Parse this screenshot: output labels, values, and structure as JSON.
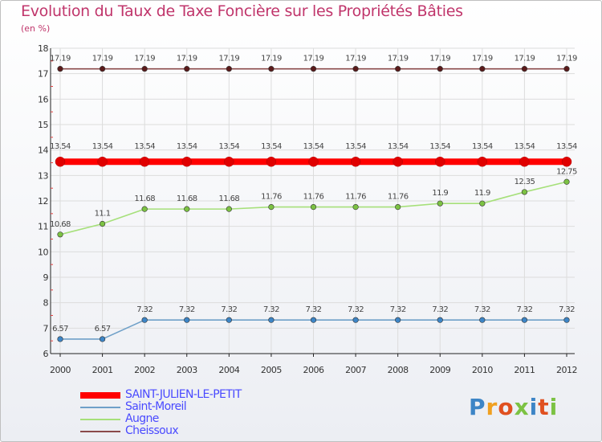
{
  "chart_data": {
    "type": "line",
    "title": "Evolution du Taux de Taxe Foncière sur les Propriétés Bâties",
    "ylabel": "(en %)",
    "xlabel": "",
    "ylim": [
      6,
      18
    ],
    "yticks": [
      6,
      7,
      8,
      9,
      10,
      11,
      12,
      13,
      14,
      15,
      16,
      17,
      18
    ],
    "x": [
      "2000",
      "2001",
      "2002",
      "2003",
      "2004",
      "2005",
      "2006",
      "2007",
      "2008",
      "2009",
      "2010",
      "2011",
      "2012"
    ],
    "series": [
      {
        "name": "SAINT-JULIEN-LE-PETIT",
        "color": "#ff0000",
        "values": [
          13.54,
          13.54,
          13.54,
          13.54,
          13.54,
          13.54,
          13.54,
          13.54,
          13.54,
          13.54,
          13.54,
          13.54,
          13.54
        ],
        "labels": [
          "13.54",
          "13.54",
          "13.54",
          "13.54",
          "13.54",
          "13.54",
          "13.54",
          "13.54",
          "13.54",
          "13.54",
          "13.54",
          "13.54",
          "13.54"
        ]
      },
      {
        "name": "Saint-Moreil",
        "color": "#6fa0c8",
        "values": [
          6.57,
          6.57,
          7.32,
          7.32,
          7.32,
          7.32,
          7.32,
          7.32,
          7.32,
          7.32,
          7.32,
          7.32,
          7.32
        ],
        "labels": [
          "6.57",
          "6.57",
          "7.32",
          "7.32",
          "7.32",
          "7.32",
          "7.32",
          "7.32",
          "7.32",
          "7.32",
          "7.32",
          "7.32",
          "7.32"
        ]
      },
      {
        "name": "Augne",
        "color": "#a6e07a",
        "values": [
          10.68,
          11.1,
          11.68,
          11.68,
          11.68,
          11.76,
          11.76,
          11.76,
          11.76,
          11.9,
          11.9,
          12.35,
          12.75
        ],
        "labels": [
          "10.68",
          "11.1",
          "11.68",
          "11.68",
          "11.68",
          "11.76",
          "11.76",
          "11.76",
          "11.76",
          "11.9",
          "11.9",
          "12.35",
          "12.75"
        ]
      },
      {
        "name": "Cheissoux",
        "color": "#8a4a4a",
        "values": [
          17.19,
          17.19,
          17.19,
          17.19,
          17.19,
          17.19,
          17.19,
          17.19,
          17.19,
          17.19,
          17.19,
          17.19,
          17.19
        ],
        "labels": [
          "17.19",
          "17.19",
          "17.19",
          "17.19",
          "17.19",
          "17.19",
          "17.19",
          "17.19",
          "17.19",
          "17.19",
          "17.19",
          "17.19",
          "17.19"
        ]
      }
    ]
  },
  "logo": {
    "text": "Proxiti"
  }
}
